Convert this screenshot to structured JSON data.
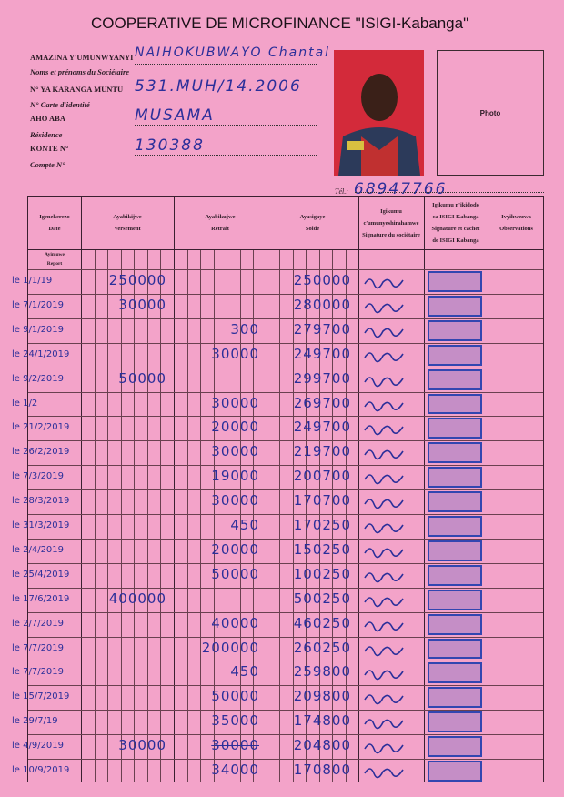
{
  "title": "COOPERATIVE DE MICROFINANCE \"ISIGI-Kabanga\"",
  "fields": [
    {
      "label": "AMAZINA Y'UMUNWYANYI",
      "sublabel": "Noms et prénoms du Sociétaire",
      "value": "NAIHOKUBWAYO Chantal"
    },
    {
      "label": "N° YA KARANGA MUNTU",
      "sublabel": "N° Carte d'identité",
      "value": "531.MUH/14.2006"
    },
    {
      "label": "AHO ABA",
      "sublabel": "Résidence",
      "value": "MUSAMA"
    },
    {
      "label": "KONTE N°",
      "sublabel": "Compte N°",
      "value": "130388"
    }
  ],
  "photo_label": "Photo",
  "tel": {
    "label": "Tél.:",
    "value": "68947766"
  },
  "table": {
    "headers": [
      "Igenekerezo\nDate",
      "Ayabikijwe\nVersement",
      "Ayabikujwe\nRetrait",
      "Ayasigaye\nSolde",
      "Igikumu\nc'umunyeshirahamwe\nSignature du sociétaire",
      "Igikumu n'ikidodo\nca ISIGI Kabanga\nSignature et cachet\nde ISIGI Kabanga",
      "Ivyihwezwa\nObservations"
    ],
    "report_label": "Ayimuwe\nReport",
    "rows": [
      {
        "date": "le 1/1/19",
        "versement": "250000",
        "retrait": "",
        "solde": "250000"
      },
      {
        "date": "le 7/1/2019",
        "versement": "30000",
        "retrait": "",
        "solde": "280000"
      },
      {
        "date": "le 9/1/2019",
        "versement": "",
        "retrait": "300",
        "solde": "279700"
      },
      {
        "date": "le 24/1/2019",
        "versement": "",
        "retrait": "30000",
        "solde": "249700"
      },
      {
        "date": "le 9/2/2019",
        "versement": "50000",
        "retrait": "",
        "solde": "299700"
      },
      {
        "date": "le 1/2",
        "versement": "",
        "retrait": "30000",
        "solde": "269700"
      },
      {
        "date": "le 21/2/2019",
        "versement": "",
        "retrait": "20000",
        "solde": "249700"
      },
      {
        "date": "le 26/2/2019",
        "versement": "",
        "retrait": "30000",
        "solde": "219700"
      },
      {
        "date": "le 7/3/2019",
        "versement": "",
        "retrait": "19000",
        "solde": "200700"
      },
      {
        "date": "le 28/3/2019",
        "versement": "",
        "retrait": "30000",
        "solde": "170700"
      },
      {
        "date": "le 31/3/2019",
        "versement": "",
        "retrait": "450",
        "solde": "170250"
      },
      {
        "date": "le 2/4/2019",
        "versement": "",
        "retrait": "20000",
        "solde": "150250"
      },
      {
        "date": "le 25/4/2019",
        "versement": "",
        "retrait": "50000",
        "solde": "100250"
      },
      {
        "date": "le 17/6/2019",
        "versement": "400000",
        "retrait": "",
        "solde": "500250"
      },
      {
        "date": "le 2/7/2019",
        "versement": "",
        "retrait": "40000",
        "solde": "460250"
      },
      {
        "date": "le 7/7/2019",
        "versement": "",
        "retrait": "200000",
        "solde": "260250"
      },
      {
        "date": "le 7/7/2019",
        "versement": "",
        "retrait": "450",
        "solde": "259800"
      },
      {
        "date": "le 15/7/2019",
        "versement": "",
        "retrait": "50000",
        "solde": "209800"
      },
      {
        "date": "le 29/7/19",
        "versement": "",
        "retrait": "35000",
        "solde": "174800"
      },
      {
        "date": "le 4/9/2019",
        "versement": "30000",
        "retrait": "30000",
        "solde": "204800",
        "retrait_struck": true
      },
      {
        "date": "le 10/9/2019",
        "versement": "",
        "retrait": "34000",
        "solde": "170800"
      }
    ]
  },
  "colors": {
    "paper": "#f3a3c9",
    "ink": "#2b2f9a",
    "stamp": "#3246b0"
  }
}
